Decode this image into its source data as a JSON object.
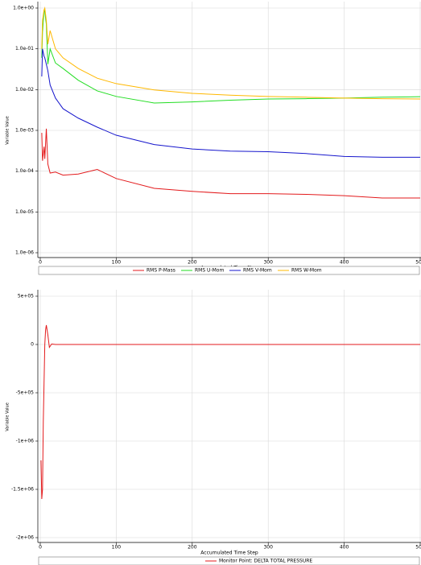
{
  "chart_data": [
    {
      "type": "line",
      "log_y": true,
      "grid": true,
      "xlabel": "Accumulated Time Step",
      "ylabel": "Variable Value",
      "xlim": [
        0,
        500
      ],
      "xticks": [
        0,
        100,
        200,
        300,
        400,
        500
      ],
      "ylim": [
        1e-06,
        1
      ],
      "yticks": [
        {
          "value": 1,
          "label": "1.0e+00"
        },
        {
          "value": 0.1,
          "label": "1.0e-01"
        },
        {
          "value": 0.01,
          "label": "1.0e-02"
        },
        {
          "value": 0.001,
          "label": "1.0e-03"
        },
        {
          "value": 0.0001,
          "label": "1.0e-04"
        },
        {
          "value": 1e-05,
          "label": "1.0e-05"
        },
        {
          "value": 1e-06,
          "label": "1.0e-06"
        }
      ],
      "x": [
        2,
        3,
        5,
        6,
        8,
        10,
        13,
        20,
        30,
        50,
        75,
        100,
        150,
        200,
        250,
        300,
        350,
        400,
        450,
        500
      ],
      "series": [
        {
          "name": "RMS P-Mass",
          "color": "#e31a1c",
          "values": [
            0.00087,
            0.00018,
            0.0004,
            0.0002,
            0.0011,
            0.00015,
            9e-05,
            9.5e-05,
            8e-05,
            8.5e-05,
            0.00011,
            6.6e-05,
            3.8e-05,
            3.2e-05,
            2.8e-05,
            2.8e-05,
            2.7e-05,
            2.5e-05,
            2.2e-05,
            2.2e-05
          ]
        },
        {
          "name": "RMS U-Mom",
          "color": "#22dd22",
          "values": [
            0.06,
            0.26,
            0.9,
            0.8,
            0.4,
            0.042,
            0.1,
            0.045,
            0.033,
            0.017,
            0.0093,
            0.0068,
            0.0047,
            0.005,
            0.0055,
            0.0059,
            0.006,
            0.0062,
            0.0065,
            0.0067
          ]
        },
        {
          "name": "RMS V-Mom",
          "color": "#1515cc",
          "values": [
            0.021,
            0.1,
            0.066,
            0.06,
            0.042,
            0.029,
            0.013,
            0.0062,
            0.0034,
            0.002,
            0.0012,
            0.00076,
            0.00045,
            0.00035,
            0.00031,
            0.0003,
            0.00027,
            0.00023,
            0.00022,
            0.00022
          ]
        },
        {
          "name": "RMS W-Mom",
          "color": "#ffb800",
          "values": [
            0.1,
            0.5,
            0.9,
            1.0,
            0.5,
            0.13,
            0.28,
            0.1,
            0.06,
            0.033,
            0.019,
            0.014,
            0.0098,
            0.0081,
            0.0073,
            0.0068,
            0.0065,
            0.0062,
            0.006,
            0.0059
          ]
        }
      ]
    },
    {
      "type": "line",
      "log_y": false,
      "grid": true,
      "xlabel": "Accumulated Time Step",
      "ylabel": "Variable Value",
      "xlim": [
        0,
        500
      ],
      "xticks": [
        0,
        100,
        200,
        300,
        400,
        500
      ],
      "ylim": [
        -2000000,
        500000
      ],
      "yticks": [
        {
          "value": 500000,
          "label": "5e+05"
        },
        0,
        {
          "value": -500000,
          "label": "-5e+05"
        },
        {
          "value": -1000000,
          "label": "-1e+06"
        },
        {
          "value": -1500000,
          "label": "-1.5e+06"
        },
        {
          "value": -2000000,
          "label": "-2e+06"
        }
      ],
      "x": [
        1,
        2,
        3,
        4,
        5,
        6,
        7,
        8,
        10,
        12,
        15,
        20,
        100,
        500
      ],
      "series": [
        {
          "name": "Monitor Point: DELTA TOTAL PRESSURE",
          "color": "#e31a1c",
          "values": [
            -1200000,
            -1600000,
            -1500000,
            -800000,
            -400000,
            0,
            150000,
            200000,
            100000,
            -30000,
            5000,
            0,
            0,
            0
          ]
        }
      ]
    }
  ]
}
